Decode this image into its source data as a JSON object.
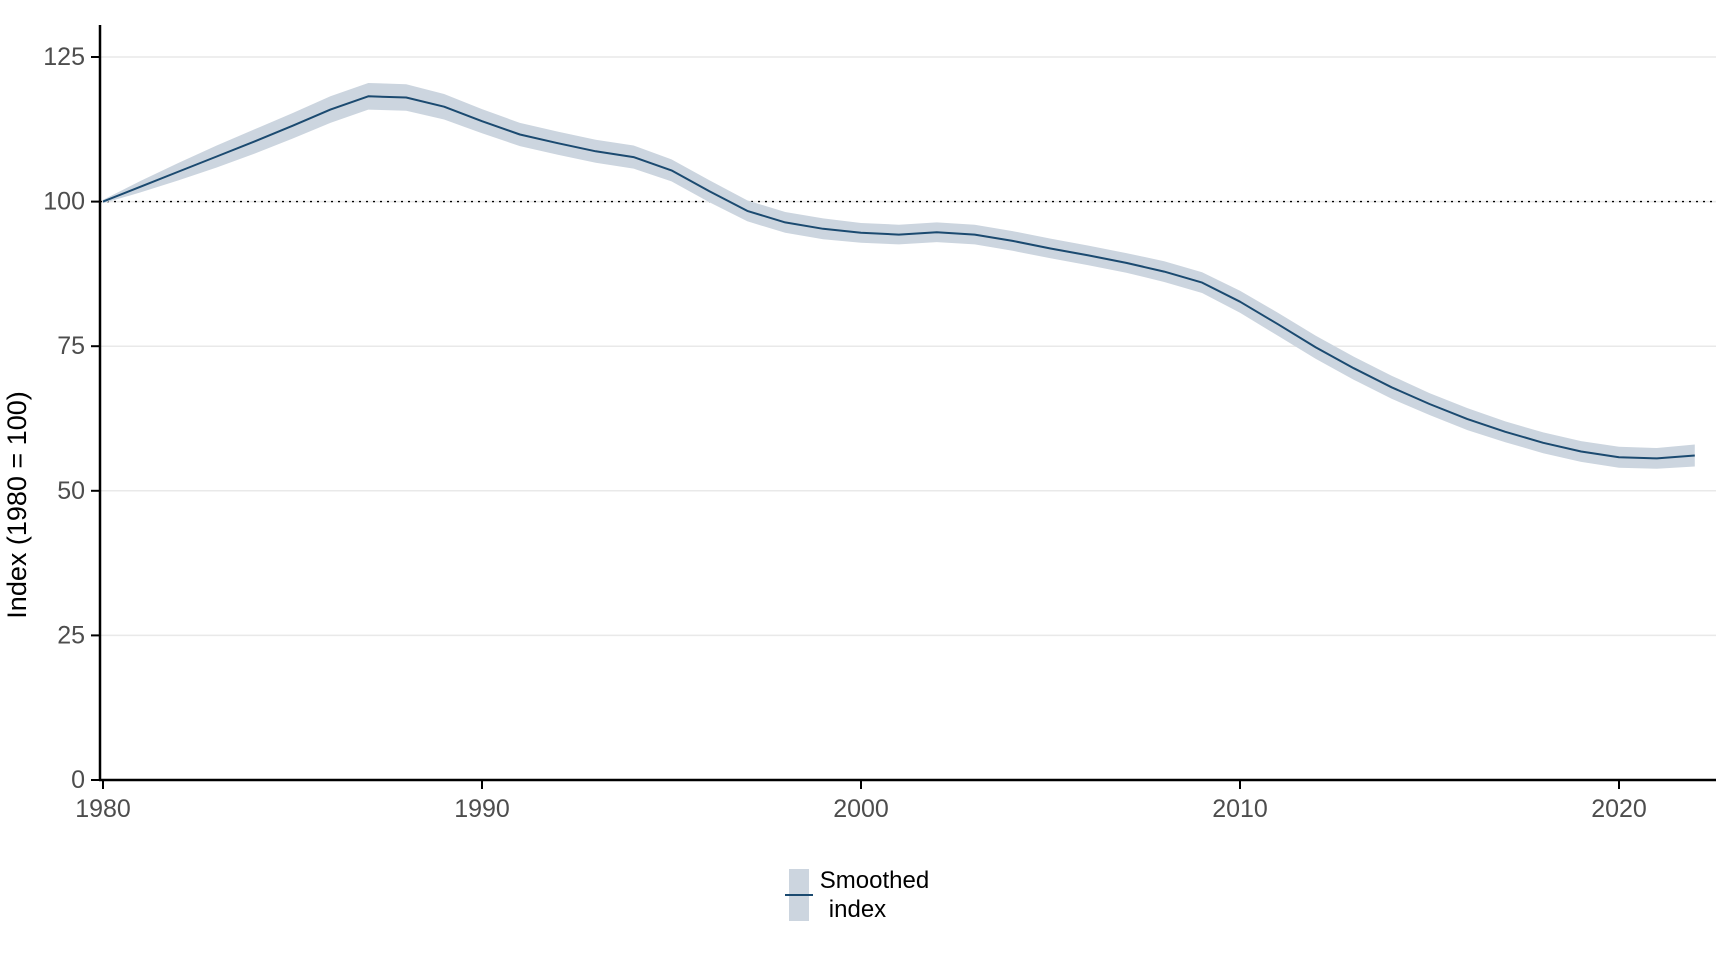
{
  "chart_data": {
    "type": "line",
    "title": "",
    "xlabel": "",
    "ylabel": "Index (1980 = 100)",
    "x": [
      1980,
      1981,
      1982,
      1983,
      1984,
      1985,
      1986,
      1987,
      1988,
      1989,
      1990,
      1991,
      1992,
      1993,
      1994,
      1995,
      1996,
      1997,
      1998,
      1999,
      2000,
      2001,
      2002,
      2003,
      2004,
      2005,
      2006,
      2007,
      2008,
      2009,
      2010,
      2011,
      2012,
      2013,
      2014,
      2015,
      2016,
      2017,
      2018,
      2019,
      2020,
      2021,
      2022
    ],
    "series": [
      {
        "name": "Smoothed index",
        "values": [
          100.0,
          102.6,
          105.2,
          107.8,
          110.4,
          113.1,
          115.9,
          118.2,
          118.0,
          116.4,
          113.9,
          111.6,
          110.1,
          108.7,
          107.7,
          105.4,
          101.8,
          98.4,
          96.4,
          95.3,
          94.6,
          94.3,
          94.7,
          94.3,
          93.2,
          91.9,
          90.7,
          89.4,
          87.9,
          86.0,
          82.7,
          78.8,
          74.8,
          71.2,
          67.9,
          65.0,
          62.4,
          60.2,
          58.3,
          56.8,
          55.8,
          55.6,
          56.1
        ],
        "ci_halfwidth": [
          0.3,
          1.0,
          1.5,
          1.9,
          2.1,
          2.2,
          2.3,
          2.3,
          2.3,
          2.2,
          2.1,
          2.0,
          2.0,
          2.0,
          2.0,
          1.9,
          1.9,
          1.8,
          1.8,
          1.8,
          1.7,
          1.7,
          1.7,
          1.7,
          1.7,
          1.7,
          1.7,
          1.7,
          1.8,
          1.8,
          1.9,
          2.0,
          2.0,
          2.0,
          2.0,
          1.9,
          1.9,
          1.8,
          1.8,
          1.8,
          1.8,
          1.8,
          1.9
        ]
      }
    ],
    "reference_line_y": 100,
    "x_ticks": [
      1980,
      1990,
      2000,
      2010,
      2020
    ],
    "y_ticks": [
      0,
      25,
      50,
      75,
      100,
      125
    ],
    "xlim": [
      1980,
      2022.6
    ],
    "ylim": [
      0,
      130.5
    ],
    "grid": "horizontal-major",
    "legend_position": "bottom",
    "colors": {
      "line": "#1b4a70",
      "ribbon": "#ccd5df",
      "grid": "#e9e9e9",
      "axis": "#000000",
      "tick_text": "#4d4d4d",
      "reference_line": "#000000",
      "axis_title": "#000000",
      "background": "#ffffff"
    }
  },
  "legend": {
    "line1": "Smoothed",
    "line2": "index"
  }
}
